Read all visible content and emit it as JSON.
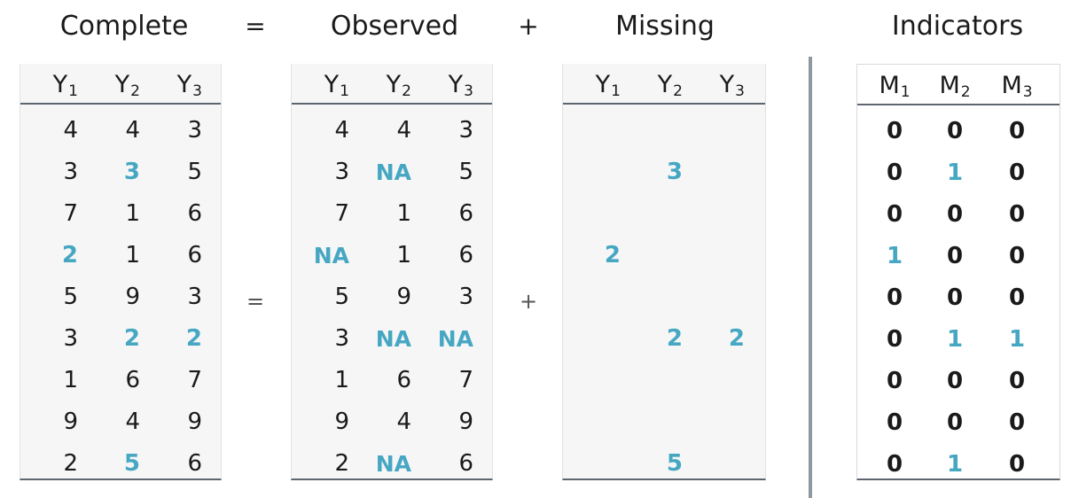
{
  "headers": {
    "complete": "Complete",
    "eq": "=",
    "observed": "Observed",
    "plus": "+",
    "missing": "Missing",
    "indicators": "Indicators"
  },
  "operators": {
    "mid_eq": "=",
    "mid_plus": "+"
  },
  "columns_y": [
    "Y",
    "Y",
    "Y"
  ],
  "columns_y_sub": [
    "1",
    "2",
    "3"
  ],
  "columns_m": [
    "M",
    "M",
    "M"
  ],
  "columns_m_sub": [
    "1",
    "2",
    "3"
  ],
  "complete": [
    [
      "4",
      "4",
      "3"
    ],
    [
      "3",
      "3",
      "5"
    ],
    [
      "7",
      "1",
      "6"
    ],
    [
      "2",
      "1",
      "6"
    ],
    [
      "5",
      "9",
      "3"
    ],
    [
      "3",
      "2",
      "2"
    ],
    [
      "1",
      "6",
      "7"
    ],
    [
      "9",
      "4",
      "9"
    ],
    [
      "2",
      "5",
      "6"
    ]
  ],
  "observed": [
    [
      "4",
      "4",
      "3"
    ],
    [
      "3",
      "NA",
      "5"
    ],
    [
      "7",
      "1",
      "6"
    ],
    [
      "NA",
      "1",
      "6"
    ],
    [
      "5",
      "9",
      "3"
    ],
    [
      "3",
      "NA",
      "NA"
    ],
    [
      "1",
      "6",
      "7"
    ],
    [
      "9",
      "4",
      "9"
    ],
    [
      "2",
      "NA",
      "6"
    ]
  ],
  "missing": [
    [
      "",
      "",
      ""
    ],
    [
      "",
      "3",
      ""
    ],
    [
      "",
      "",
      ""
    ],
    [
      "2",
      "",
      ""
    ],
    [
      "",
      "",
      ""
    ],
    [
      "",
      "2",
      "2"
    ],
    [
      "",
      "",
      ""
    ],
    [
      "",
      "",
      ""
    ],
    [
      "",
      "5",
      ""
    ]
  ],
  "indicators": [
    [
      "0",
      "0",
      "0"
    ],
    [
      "0",
      "1",
      "0"
    ],
    [
      "0",
      "0",
      "0"
    ],
    [
      "1",
      "0",
      "0"
    ],
    [
      "0",
      "0",
      "0"
    ],
    [
      "0",
      "1",
      "1"
    ],
    [
      "0",
      "0",
      "0"
    ],
    [
      "0",
      "0",
      "0"
    ],
    [
      "0",
      "1",
      "0"
    ]
  ],
  "missing_mask": [
    [
      0,
      0,
      0
    ],
    [
      0,
      1,
      0
    ],
    [
      0,
      0,
      0
    ],
    [
      1,
      0,
      0
    ],
    [
      0,
      0,
      0
    ],
    [
      0,
      1,
      1
    ],
    [
      0,
      0,
      0
    ],
    [
      0,
      0,
      0
    ],
    [
      0,
      1,
      0
    ]
  ],
  "colors": {
    "highlight": "#46a7c3",
    "text": "#1a1a1a",
    "rule": "#5d6670"
  }
}
